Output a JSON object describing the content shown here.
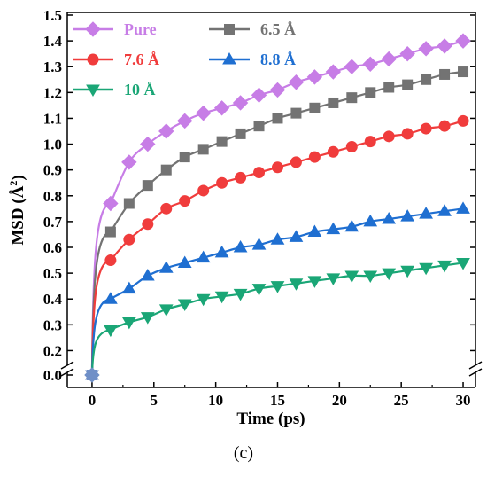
{
  "caption": "(c)",
  "chart_data": {
    "type": "line",
    "xlabel": "Time (ps)",
    "ylabel_text": "MSD (Å",
    "ylabel_sup": "2",
    "ylabel_close": ")",
    "xlim": [
      -2,
      31
    ],
    "ylim_upper": [
      0.15,
      1.5
    ],
    "ylim_lower": [
      0.0,
      0.0
    ],
    "y_axis_break": true,
    "grid": false,
    "legend_position": "top-left (inside plot)",
    "xticks": [
      0,
      5,
      10,
      15,
      20,
      25,
      30
    ],
    "xtick_labels": [
      "0",
      "5",
      "10",
      "15",
      "20",
      "25",
      "30"
    ],
    "yticks": [
      0.2,
      0.3,
      0.4,
      0.5,
      0.6,
      0.7,
      0.8,
      0.9,
      1.0,
      1.1,
      1.2,
      1.3,
      1.4,
      1.5
    ],
    "ytick_labels": [
      "0.2",
      "0.3",
      "0.4",
      "0.5",
      "0.6",
      "0.7",
      "0.8",
      "0.9",
      "1.0",
      "1.1",
      "1.2",
      "1.3",
      "1.4",
      "1.5"
    ],
    "ytick_zero_label": "0.0",
    "x": [
      0,
      1.5,
      3,
      4.5,
      6,
      7.5,
      9,
      10.5,
      12,
      13.5,
      15,
      16.5,
      18,
      19.5,
      21,
      22.5,
      24,
      25.5,
      27,
      28.5,
      30
    ],
    "series": [
      {
        "name": "Pure",
        "color": "#c77de6",
        "marker": "diamond",
        "values": [
          0.0,
          0.77,
          0.93,
          1.0,
          1.05,
          1.09,
          1.12,
          1.14,
          1.16,
          1.19,
          1.21,
          1.24,
          1.26,
          1.28,
          1.3,
          1.31,
          1.33,
          1.35,
          1.37,
          1.38,
          1.4
        ]
      },
      {
        "name": "6.5 Å",
        "color": "#737373",
        "marker": "square",
        "values": [
          0.0,
          0.66,
          0.77,
          0.84,
          0.9,
          0.95,
          0.98,
          1.01,
          1.04,
          1.07,
          1.1,
          1.12,
          1.14,
          1.16,
          1.18,
          1.2,
          1.22,
          1.23,
          1.25,
          1.27,
          1.28
        ]
      },
      {
        "name": "7.6 Å",
        "color": "#f03c3c",
        "marker": "circle",
        "values": [
          0.0,
          0.55,
          0.63,
          0.69,
          0.75,
          0.78,
          0.82,
          0.85,
          0.87,
          0.89,
          0.91,
          0.93,
          0.95,
          0.97,
          0.99,
          1.01,
          1.03,
          1.04,
          1.06,
          1.07,
          1.09
        ]
      },
      {
        "name": "8.8 Å",
        "color": "#1f6fd1",
        "marker": "triangle-up",
        "values": [
          0.0,
          0.4,
          0.44,
          0.49,
          0.52,
          0.54,
          0.56,
          0.58,
          0.6,
          0.61,
          0.63,
          0.64,
          0.66,
          0.67,
          0.68,
          0.7,
          0.71,
          0.72,
          0.73,
          0.74,
          0.75
        ]
      },
      {
        "name": "10 Å",
        "color": "#1aa676",
        "marker": "triangle-down",
        "values": [
          0.0,
          0.28,
          0.31,
          0.33,
          0.36,
          0.38,
          0.4,
          0.41,
          0.42,
          0.44,
          0.45,
          0.46,
          0.47,
          0.48,
          0.49,
          0.49,
          0.5,
          0.51,
          0.52,
          0.53,
          0.54
        ]
      }
    ]
  }
}
